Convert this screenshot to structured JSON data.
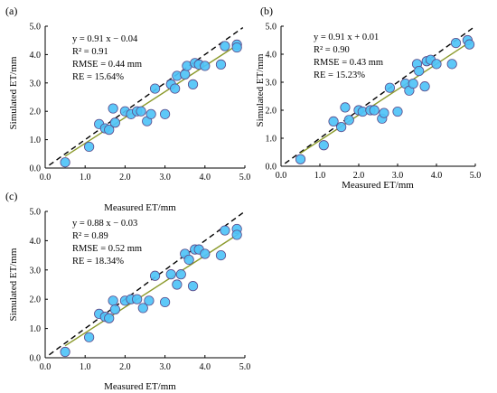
{
  "chart_data": [
    {
      "type": "scatter",
      "panel_label": "(a)",
      "xlabel": "Measured ET/mm",
      "ylabel": "Simulated ET/mm",
      "xlim": [
        0.0,
        5.0
      ],
      "ylim": [
        0.0,
        5.0
      ],
      "x_ticks": [
        "0.0",
        "1.0",
        "2.0",
        "3.0",
        "4.0",
        "5.0"
      ],
      "y_ticks": [
        "0.0",
        "1.0",
        "2.0",
        "3.0",
        "4.0",
        "5.0"
      ],
      "stats": [
        "y = 0.91 x − 0.04",
        "R² = 0.91",
        "RMSE = 0.44 mm",
        "RE = 15.64%"
      ],
      "fit": {
        "slope": 0.91,
        "intercept": -0.04
      },
      "one_to_one": true,
      "grid": false,
      "points": [
        [
          0.5,
          0.2
        ],
        [
          1.1,
          0.75
        ],
        [
          1.35,
          1.55
        ],
        [
          1.5,
          1.4
        ],
        [
          1.6,
          1.35
        ],
        [
          1.7,
          2.1
        ],
        [
          1.75,
          1.6
        ],
        [
          2.0,
          2.0
        ],
        [
          2.15,
          1.9
        ],
        [
          2.3,
          2.0
        ],
        [
          2.4,
          2.0
        ],
        [
          2.55,
          1.65
        ],
        [
          2.65,
          1.9
        ],
        [
          2.75,
          2.8
        ],
        [
          3.0,
          1.9
        ],
        [
          3.15,
          2.95
        ],
        [
          3.25,
          2.8
        ],
        [
          3.3,
          3.25
        ],
        [
          3.5,
          3.3
        ],
        [
          3.55,
          3.6
        ],
        [
          3.7,
          2.95
        ],
        [
          3.75,
          3.7
        ],
        [
          3.85,
          3.65
        ],
        [
          4.0,
          3.6
        ],
        [
          4.4,
          3.65
        ],
        [
          4.5,
          4.3
        ],
        [
          4.8,
          4.35
        ],
        [
          4.8,
          4.25
        ]
      ]
    },
    {
      "type": "scatter",
      "panel_label": "(b)",
      "xlabel": "Measured ET/mm",
      "ylabel": "Simulated ET/mm",
      "xlim": [
        0.0,
        5.0
      ],
      "ylim": [
        0.0,
        5.0
      ],
      "x_ticks": [
        "0.0",
        "1.0",
        "2.0",
        "3.0",
        "4.0",
        "5.0"
      ],
      "y_ticks": [
        "0.0",
        "1.0",
        "2.0",
        "3.0",
        "4.0",
        "5.0"
      ],
      "stats": [
        "y = 0.91 x + 0.01",
        "R² = 0.90",
        "RMSE = 0.43 mm",
        "RE = 15.23%"
      ],
      "fit": {
        "slope": 0.91,
        "intercept": 0.01
      },
      "one_to_one": true,
      "grid": false,
      "points": [
        [
          0.5,
          0.25
        ],
        [
          1.1,
          0.75
        ],
        [
          1.35,
          1.6
        ],
        [
          1.55,
          1.4
        ],
        [
          1.65,
          2.1
        ],
        [
          1.75,
          1.65
        ],
        [
          2.0,
          2.0
        ],
        [
          2.1,
          1.95
        ],
        [
          2.3,
          2.0
        ],
        [
          2.4,
          2.0
        ],
        [
          2.6,
          1.7
        ],
        [
          2.65,
          1.9
        ],
        [
          2.8,
          2.8
        ],
        [
          3.0,
          1.95
        ],
        [
          3.2,
          2.95
        ],
        [
          3.3,
          2.7
        ],
        [
          3.4,
          2.95
        ],
        [
          3.5,
          3.65
        ],
        [
          3.55,
          3.4
        ],
        [
          3.7,
          2.85
        ],
        [
          3.75,
          3.75
        ],
        [
          3.85,
          3.8
        ],
        [
          4.0,
          3.65
        ],
        [
          4.4,
          3.65
        ],
        [
          4.5,
          4.4
        ],
        [
          4.8,
          4.5
        ],
        [
          4.85,
          4.35
        ]
      ]
    },
    {
      "type": "scatter",
      "panel_label": "(c)",
      "xlabel": "Measured ET/mm",
      "ylabel": "Simulated ET/mm",
      "xlim": [
        0.0,
        5.0
      ],
      "ylim": [
        0.0,
        5.0
      ],
      "x_ticks": [
        "0.0",
        "1.0",
        "2.0",
        "3.0",
        "4.0",
        "5.0"
      ],
      "y_ticks": [
        "0.0",
        "1.0",
        "2.0",
        "3.0",
        "4.0",
        "5.0"
      ],
      "stats": [
        "y = 0.88 x − 0.03",
        "R² = 0.89",
        "RMSE = 0.52 mm",
        "RE = 18.34%"
      ],
      "fit": {
        "slope": 0.88,
        "intercept": -0.03
      },
      "one_to_one": true,
      "grid": false,
      "points": [
        [
          0.5,
          0.2
        ],
        [
          1.1,
          0.7
        ],
        [
          1.35,
          1.5
        ],
        [
          1.5,
          1.4
        ],
        [
          1.6,
          1.35
        ],
        [
          1.7,
          1.95
        ],
        [
          1.75,
          1.65
        ],
        [
          2.0,
          1.95
        ],
        [
          2.15,
          2.0
        ],
        [
          2.3,
          2.0
        ],
        [
          2.45,
          1.7
        ],
        [
          2.6,
          1.95
        ],
        [
          2.75,
          2.8
        ],
        [
          3.0,
          1.9
        ],
        [
          3.15,
          2.85
        ],
        [
          3.3,
          2.5
        ],
        [
          3.4,
          2.85
        ],
        [
          3.5,
          3.55
        ],
        [
          3.6,
          3.35
        ],
        [
          3.7,
          2.45
        ],
        [
          3.75,
          3.7
        ],
        [
          3.85,
          3.7
        ],
        [
          4.0,
          3.55
        ],
        [
          4.4,
          3.5
        ],
        [
          4.5,
          4.35
        ],
        [
          4.8,
          4.4
        ],
        [
          4.8,
          4.2
        ]
      ]
    }
  ],
  "colors": {
    "marker_fill": "#4FC3F7",
    "marker_stroke": "#5B4A8A",
    "fit_line": "#8B9A2B",
    "one_to_one": "#000000",
    "axis": "#000000"
  }
}
